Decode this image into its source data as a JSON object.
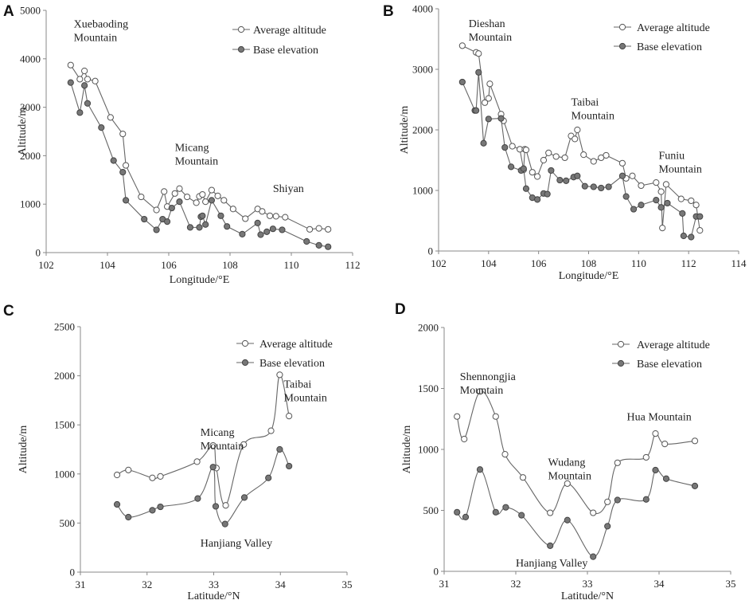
{
  "legend": {
    "average_label": "Average altitude",
    "base_label": "Base elevation"
  },
  "colors": {
    "line": "#666666",
    "axis": "#888888",
    "avg_marker_fill": "#ffffff",
    "avg_marker_stroke": "#555555",
    "base_marker_fill": "#777777",
    "base_marker_stroke": "#444444"
  },
  "chart_data": [
    {
      "panel": "A",
      "type": "line",
      "xlabel": "Longitude/°E",
      "ylabel": "Altitude/m",
      "xlim": [
        102,
        112
      ],
      "xticks": [
        102,
        104,
        106,
        108,
        110,
        112
      ],
      "ylim": [
        0,
        5000
      ],
      "yticks": [
        0,
        1000,
        2000,
        3000,
        4000,
        5000
      ],
      "smooth": false,
      "annotations": [
        {
          "lines": [
            "Xuebaoding",
            "Mountain"
          ],
          "x": 102.9,
          "y": 4650
        },
        {
          "lines": [
            "Micang",
            "Mountain"
          ],
          "x": 106.2,
          "y": 2100
        },
        {
          "lines": [
            "Shiyan"
          ],
          "x": 109.4,
          "y": 1250
        }
      ],
      "series": [
        {
          "name": "Average altitude",
          "marker": "open",
          "x": [
            102.8,
            103.1,
            103.25,
            103.35,
            103.6,
            104.1,
            104.5,
            104.6,
            105.1,
            105.6,
            105.85,
            105.95,
            106.2,
            106.35,
            106.6,
            106.9,
            107.0,
            107.1,
            107.2,
            107.4,
            107.6,
            107.8,
            108.1,
            108.5,
            108.9,
            109.05,
            109.3,
            109.5,
            109.8,
            110.6,
            110.9,
            111.2
          ],
          "y": [
            3870,
            3580,
            3750,
            3580,
            3540,
            2790,
            2450,
            1800,
            1150,
            880,
            1260,
            950,
            1220,
            1320,
            1150,
            1030,
            1160,
            1200,
            1050,
            1290,
            1170,
            1080,
            900,
            700,
            900,
            850,
            760,
            750,
            730,
            480,
            500,
            480
          ]
        },
        {
          "name": "Base elevation",
          "marker": "filled",
          "x": [
            102.8,
            103.1,
            103.25,
            103.35,
            103.8,
            104.2,
            104.5,
            104.6,
            105.2,
            105.6,
            105.8,
            105.95,
            106.1,
            106.35,
            106.7,
            107.0,
            107.05,
            107.1,
            107.2,
            107.4,
            107.7,
            107.9,
            108.4,
            108.9,
            109.0,
            109.2,
            109.4,
            109.7,
            110.5,
            110.9,
            111.2
          ],
          "y": [
            3510,
            2890,
            3450,
            3080,
            2580,
            1900,
            1660,
            1080,
            690,
            470,
            690,
            640,
            920,
            1050,
            520,
            520,
            740,
            760,
            580,
            1080,
            760,
            540,
            380,
            610,
            370,
            430,
            490,
            470,
            230,
            150,
            120
          ]
        }
      ]
    },
    {
      "panel": "B",
      "type": "line",
      "xlabel": "Longitude/°E",
      "ylabel": "Altitude/m",
      "xlim": [
        102,
        114
      ],
      "xticks": [
        102,
        104,
        106,
        108,
        110,
        112,
        114
      ],
      "ylim": [
        0,
        4000
      ],
      "yticks": [
        0,
        1000,
        2000,
        3000,
        4000
      ],
      "smooth": false,
      "annotations": [
        {
          "lines": [
            "Dieshan",
            "Mountain"
          ],
          "x": 103.2,
          "y": 3700
        },
        {
          "lines": [
            "Taibai",
            "Mountain"
          ],
          "x": 107.3,
          "y": 2400
        },
        {
          "lines": [
            "Funiu",
            "Mountain"
          ],
          "x": 110.8,
          "y": 1520
        }
      ],
      "series": [
        {
          "name": "Average altitude",
          "marker": "open",
          "x": [
            102.95,
            103.5,
            103.6,
            103.85,
            104.0,
            104.05,
            104.5,
            104.6,
            104.95,
            105.25,
            105.4,
            105.45,
            105.5,
            105.75,
            105.95,
            106.2,
            106.4,
            106.7,
            107.05,
            107.3,
            107.45,
            107.55,
            107.8,
            108.2,
            108.5,
            108.7,
            109.35,
            109.5,
            109.75,
            110.1,
            110.7,
            110.9,
            110.95,
            111.1,
            111.7,
            112.1,
            112.3,
            112.45
          ],
          "y": [
            3390,
            3280,
            3260,
            2450,
            2520,
            2760,
            2260,
            2150,
            1730,
            1680,
            1340,
            1680,
            1670,
            1300,
            1230,
            1500,
            1620,
            1560,
            1540,
            1900,
            1850,
            2000,
            1590,
            1480,
            1540,
            1580,
            1450,
            1200,
            1240,
            1080,
            1130,
            980,
            380,
            1100,
            860,
            830,
            760,
            340
          ]
        },
        {
          "name": "Base elevation",
          "marker": "filled",
          "x": [
            102.95,
            103.45,
            103.5,
            103.6,
            103.8,
            104.0,
            104.5,
            104.65,
            104.9,
            105.3,
            105.4,
            105.5,
            105.75,
            105.95,
            106.2,
            106.35,
            106.5,
            106.85,
            107.1,
            107.4,
            107.55,
            107.85,
            108.2,
            108.5,
            108.8,
            109.35,
            109.5,
            109.8,
            110.1,
            110.7,
            110.9,
            111.15,
            111.75,
            111.8,
            112.1,
            112.3,
            112.45
          ],
          "y": [
            2790,
            2320,
            2320,
            2950,
            1780,
            2180,
            2190,
            1710,
            1390,
            1330,
            1360,
            1030,
            880,
            850,
            950,
            940,
            1330,
            1170,
            1160,
            1220,
            1240,
            1070,
            1060,
            1040,
            1060,
            1240,
            900,
            690,
            760,
            840,
            720,
            790,
            620,
            250,
            230,
            570,
            570
          ]
        }
      ]
    },
    {
      "panel": "C",
      "type": "line",
      "xlabel": "Latitude/°N",
      "ylabel": "Altitude/m",
      "xlim": [
        31,
        35
      ],
      "xticks": [
        31,
        32,
        33,
        34,
        35
      ],
      "ylim": [
        0,
        2500
      ],
      "yticks": [
        0,
        500,
        1000,
        1500,
        2000,
        2500
      ],
      "smooth": true,
      "annotations": [
        {
          "lines": [
            "Micang",
            "Mountain"
          ],
          "x": 32.8,
          "y": 1390
        },
        {
          "lines": [
            "Taibai",
            "Mountain"
          ],
          "x": 34.05,
          "y": 1880
        },
        {
          "lines": [
            "Hanjiang Valley"
          ],
          "x": 32.8,
          "y": 260
        }
      ],
      "series": [
        {
          "name": "Average altitude",
          "marker": "open",
          "x": [
            31.55,
            31.72,
            32.08,
            32.2,
            32.75,
            32.99,
            33.04,
            33.18,
            33.45,
            33.86,
            33.99,
            34.13
          ],
          "y": [
            990,
            1040,
            960,
            975,
            1125,
            1290,
            1060,
            680,
            1300,
            1440,
            2010,
            1590
          ]
        },
        {
          "name": "Base elevation",
          "marker": "filled",
          "x": [
            31.55,
            31.72,
            32.08,
            32.2,
            32.76,
            32.99,
            33.03,
            33.17,
            33.46,
            33.82,
            33.99,
            34.13
          ],
          "y": [
            690,
            560,
            630,
            665,
            750,
            1070,
            670,
            490,
            760,
            960,
            1250,
            1080
          ]
        }
      ]
    },
    {
      "panel": "D",
      "type": "line",
      "xlabel": "Latitude/°N",
      "ylabel": "Altitude/m",
      "xlim": [
        31,
        35
      ],
      "xticks": [
        31,
        32,
        33,
        34,
        35
      ],
      "ylim": [
        0,
        2000
      ],
      "yticks": [
        0,
        500,
        1000,
        1500,
        2000
      ],
      "smooth": true,
      "annotations": [
        {
          "lines": [
            "Shennongjia",
            "Mountain"
          ],
          "x": 31.22,
          "y": 1570
        },
        {
          "lines": [
            "Wudang",
            "Mountain"
          ],
          "x": 32.45,
          "y": 865
        },
        {
          "lines": [
            "Hua Mountain"
          ],
          "x": 33.55,
          "y": 1240
        },
        {
          "lines": [
            "Hanjiang Valley"
          ],
          "x": 32.0,
          "y": 40
        }
      ],
      "series": [
        {
          "name": "Average altitude",
          "marker": "open",
          "x": [
            31.18,
            31.28,
            31.5,
            31.72,
            31.85,
            32.1,
            32.48,
            32.72,
            33.08,
            33.28,
            33.42,
            33.82,
            33.95,
            34.08,
            34.5
          ],
          "y": [
            1270,
            1085,
            1475,
            1270,
            960,
            770,
            480,
            720,
            480,
            570,
            890,
            935,
            1130,
            1045,
            1070
          ]
        },
        {
          "name": "Base elevation",
          "marker": "filled",
          "x": [
            31.18,
            31.3,
            31.5,
            31.72,
            31.86,
            32.08,
            32.48,
            32.72,
            33.08,
            33.28,
            33.42,
            33.82,
            33.95,
            34.1,
            34.5
          ],
          "y": [
            485,
            445,
            835,
            485,
            525,
            460,
            210,
            420,
            120,
            370,
            585,
            590,
            830,
            760,
            700
          ]
        }
      ]
    }
  ]
}
